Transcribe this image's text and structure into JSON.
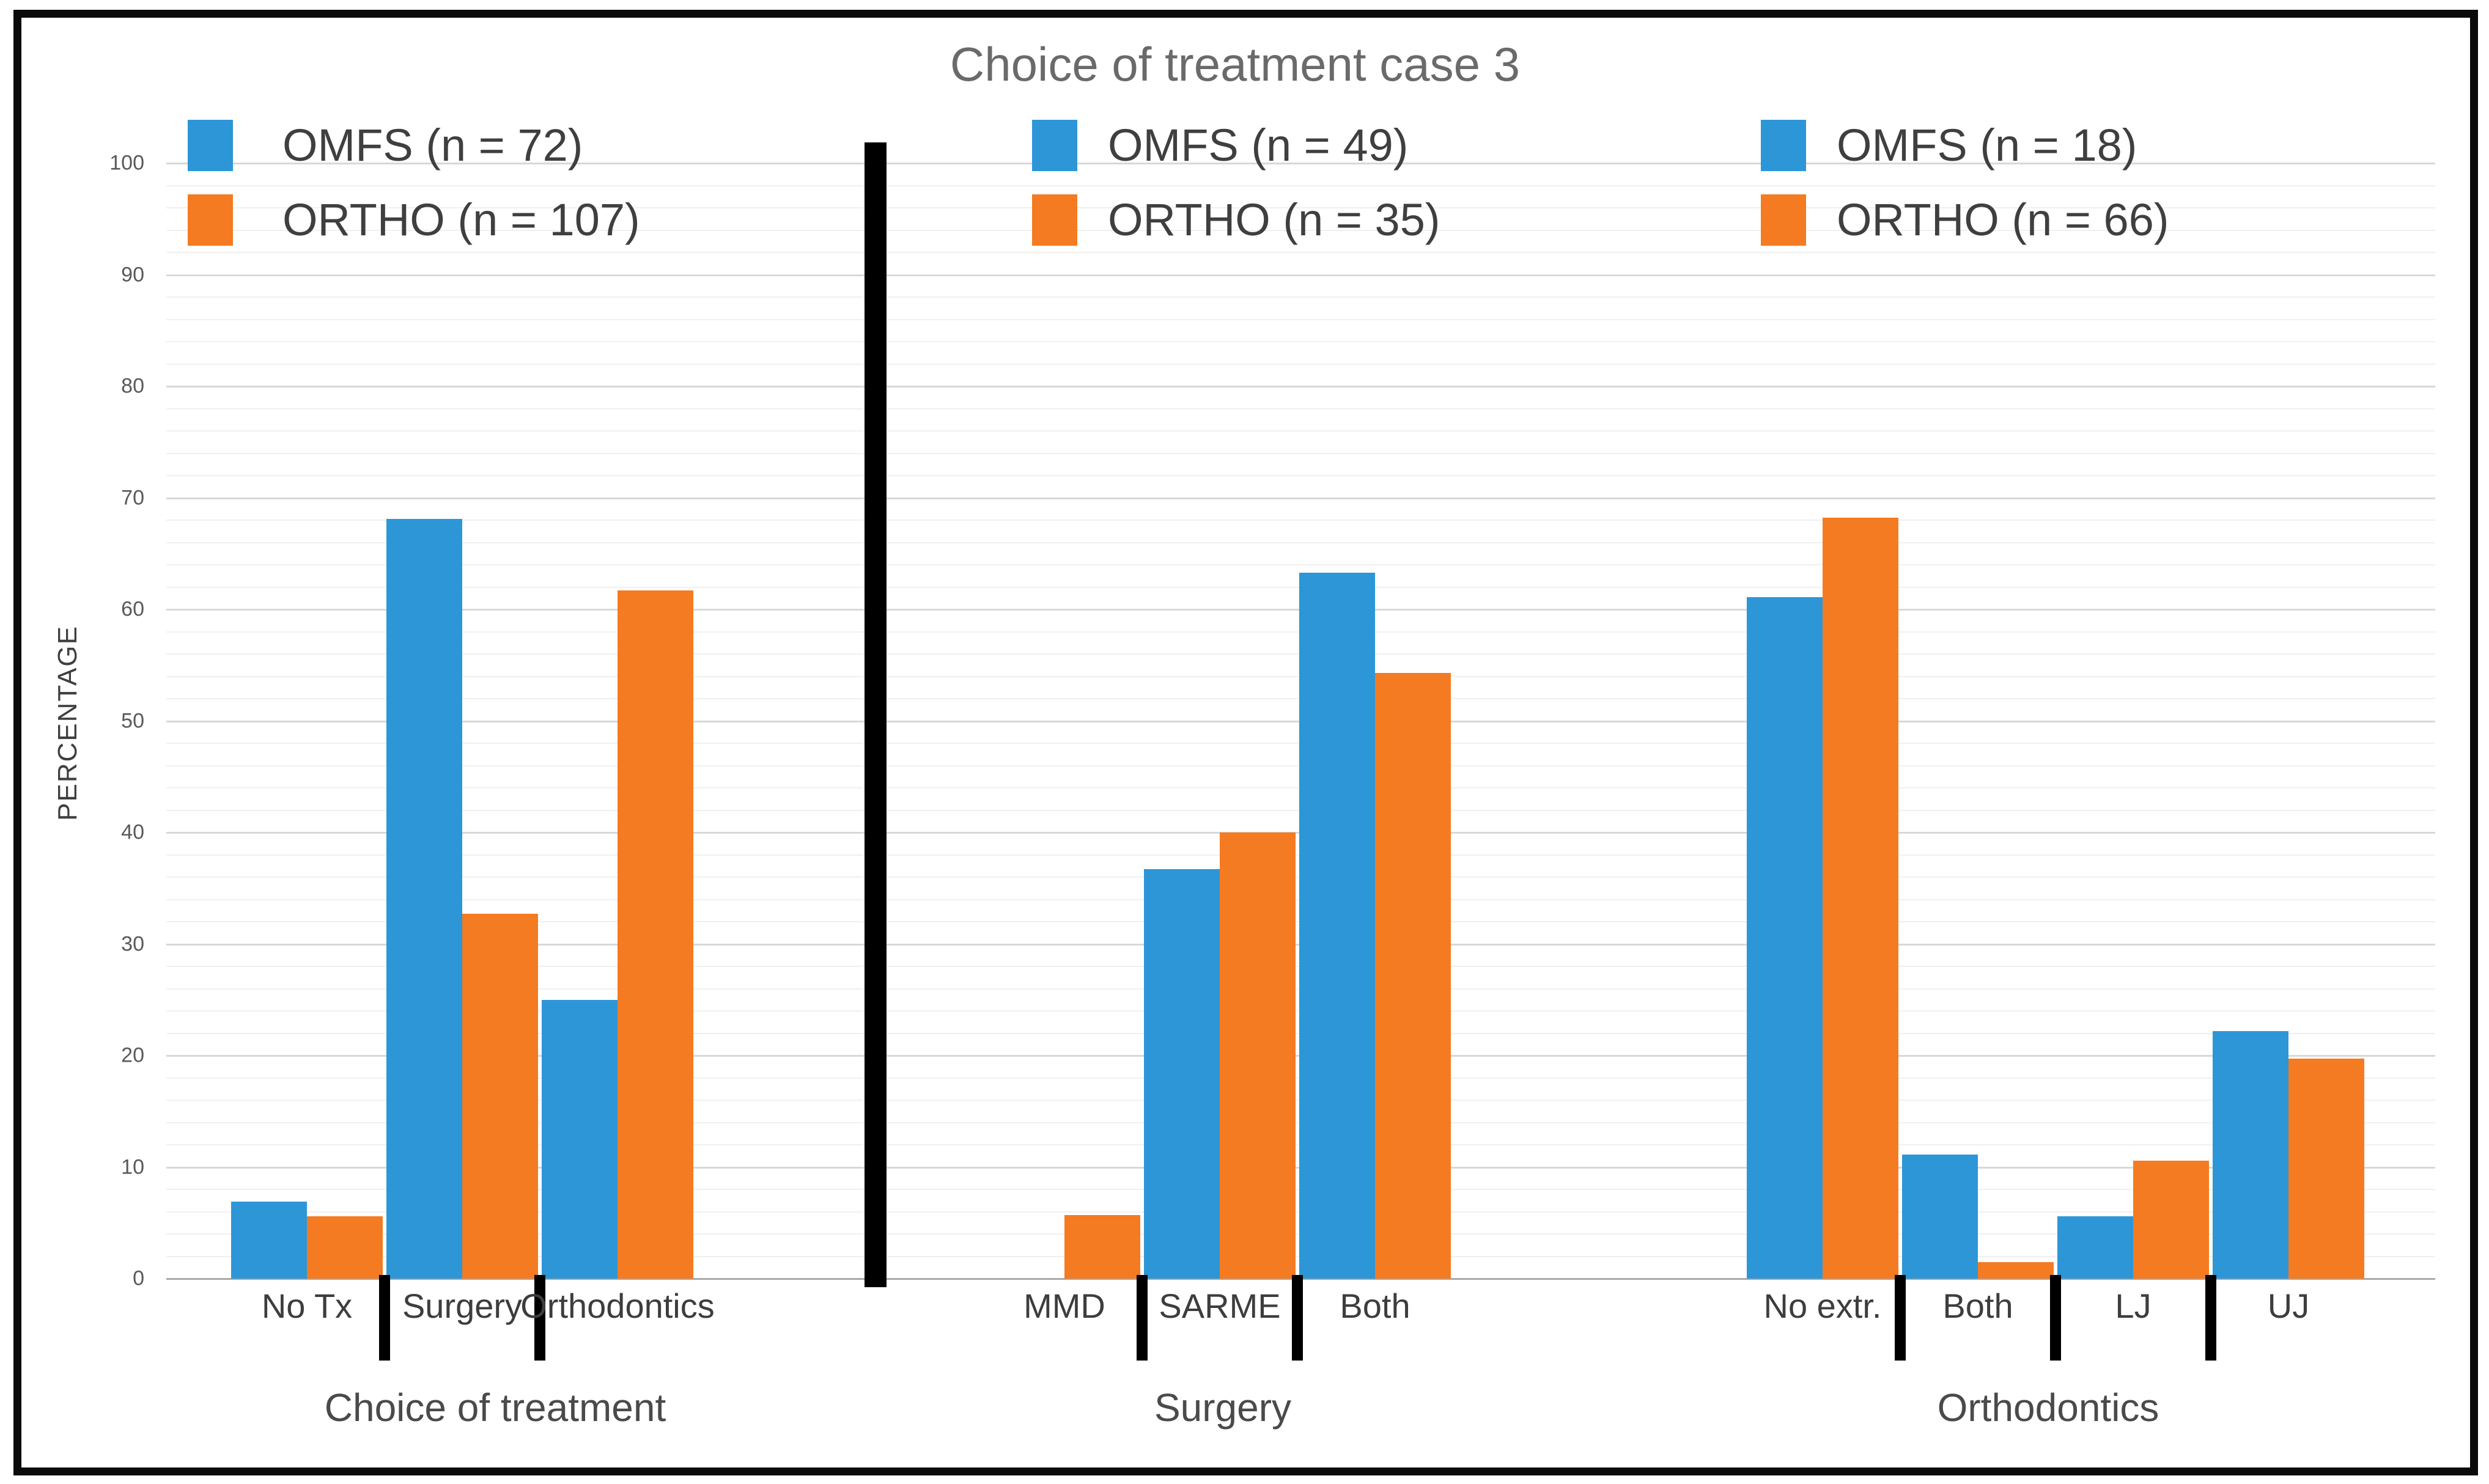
{
  "title": "Choice of treatment case 3",
  "y_axis": {
    "label": "PERCENTAGE",
    "ticks": [
      0,
      10,
      20,
      30,
      40,
      50,
      60,
      70,
      80,
      90,
      100
    ]
  },
  "colors": {
    "omfs_blue": "#2d96d7",
    "ortho_orange": "#f47b21",
    "divider_black": "#000000",
    "title_gray": "#6a6a6a",
    "gridline_major": "#d8d8d8",
    "gridline_minor": "#f0f0f0"
  },
  "chart_data": {
    "type": "bar",
    "title": "Choice of treatment case 3",
    "ylabel": "PERCENTAGE",
    "ylim": [
      0,
      100
    ],
    "grid": {
      "major_step": 10,
      "minor_step": 2,
      "grid_on": true
    },
    "legend_position": "top-inside-per-panel",
    "panels": [
      {
        "name": "Choice of treatment",
        "legend": [
          {
            "series": "OMFS",
            "label": "OMFS (n = 72)"
          },
          {
            "series": "ORTHO",
            "label": "ORTHO (n = 107)"
          }
        ],
        "categories": [
          "No Tx",
          "Surgery",
          "Orthodontics"
        ],
        "series": [
          {
            "name": "OMFS",
            "color": "#2d96d7",
            "values": [
              6.9,
              68.1,
              25.0
            ]
          },
          {
            "name": "ORTHO",
            "color": "#f47b21",
            "values": [
              5.6,
              32.7,
              61.7
            ]
          }
        ]
      },
      {
        "name": "Surgery",
        "legend": [
          {
            "series": "OMFS",
            "label": "OMFS (n = 49)"
          },
          {
            "series": "ORTHO",
            "label": "ORTHO (n = 35)"
          }
        ],
        "categories": [
          "MMD",
          "SARME",
          "Both"
        ],
        "series": [
          {
            "name": "OMFS",
            "color": "#2d96d7",
            "values": [
              0,
              36.7,
              63.3
            ]
          },
          {
            "name": "ORTHO",
            "color": "#f47b21",
            "values": [
              5.7,
              40.0,
              54.3
            ]
          }
        ]
      },
      {
        "name": "Orthodontics",
        "legend": [
          {
            "series": "OMFS",
            "label": "OMFS (n = 18)"
          },
          {
            "series": "ORTHO",
            "label": "ORTHO (n = 66)"
          }
        ],
        "categories": [
          "No extr.",
          "Both",
          "LJ",
          "UJ"
        ],
        "series": [
          {
            "name": "OMFS",
            "color": "#2d96d7",
            "values": [
              61.1,
              11.1,
              5.6,
              22.2
            ]
          },
          {
            "name": "ORTHO",
            "color": "#f47b21",
            "values": [
              68.2,
              1.5,
              10.6,
              19.7
            ]
          }
        ]
      }
    ]
  }
}
